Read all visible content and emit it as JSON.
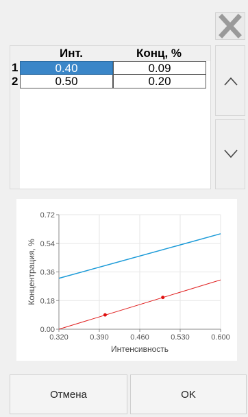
{
  "table": {
    "headers": [
      "Инт.",
      "Конц, %"
    ],
    "rows": [
      {
        "index": "1",
        "intensity": "0.40",
        "concentration": "0.09"
      },
      {
        "index": "2",
        "intensity": "0.50",
        "concentration": "0.20"
      }
    ]
  },
  "buttons": {
    "cancel": "Отмена",
    "ok": "OK"
  },
  "colors": {
    "selection": "#3a86c8",
    "line_fit": "#e02020",
    "line_ref": "#1a9ad8",
    "point": "#e01010"
  },
  "chart_data": {
    "type": "line",
    "xlabel": "Интенсивность",
    "ylabel": "Концентрация, %",
    "xlim": [
      0.32,
      0.6
    ],
    "ylim": [
      0.0,
      0.72
    ],
    "xticks": [
      "0.320",
      "0.390",
      "0.460",
      "0.530",
      "0.600"
    ],
    "yticks": [
      "0.00",
      "0.18",
      "0.36",
      "0.54",
      "0.72"
    ],
    "grid": true,
    "series": [
      {
        "type": "line",
        "x": [
          0.32,
          0.6
        ],
        "y": [
          0.32,
          0.6
        ]
      },
      {
        "type": "line",
        "x": [
          0.32,
          0.6
        ],
        "y": [
          0.0,
          0.31
        ]
      },
      {
        "type": "scatter",
        "x": [
          0.4,
          0.5
        ],
        "y": [
          0.09,
          0.2
        ]
      }
    ]
  }
}
